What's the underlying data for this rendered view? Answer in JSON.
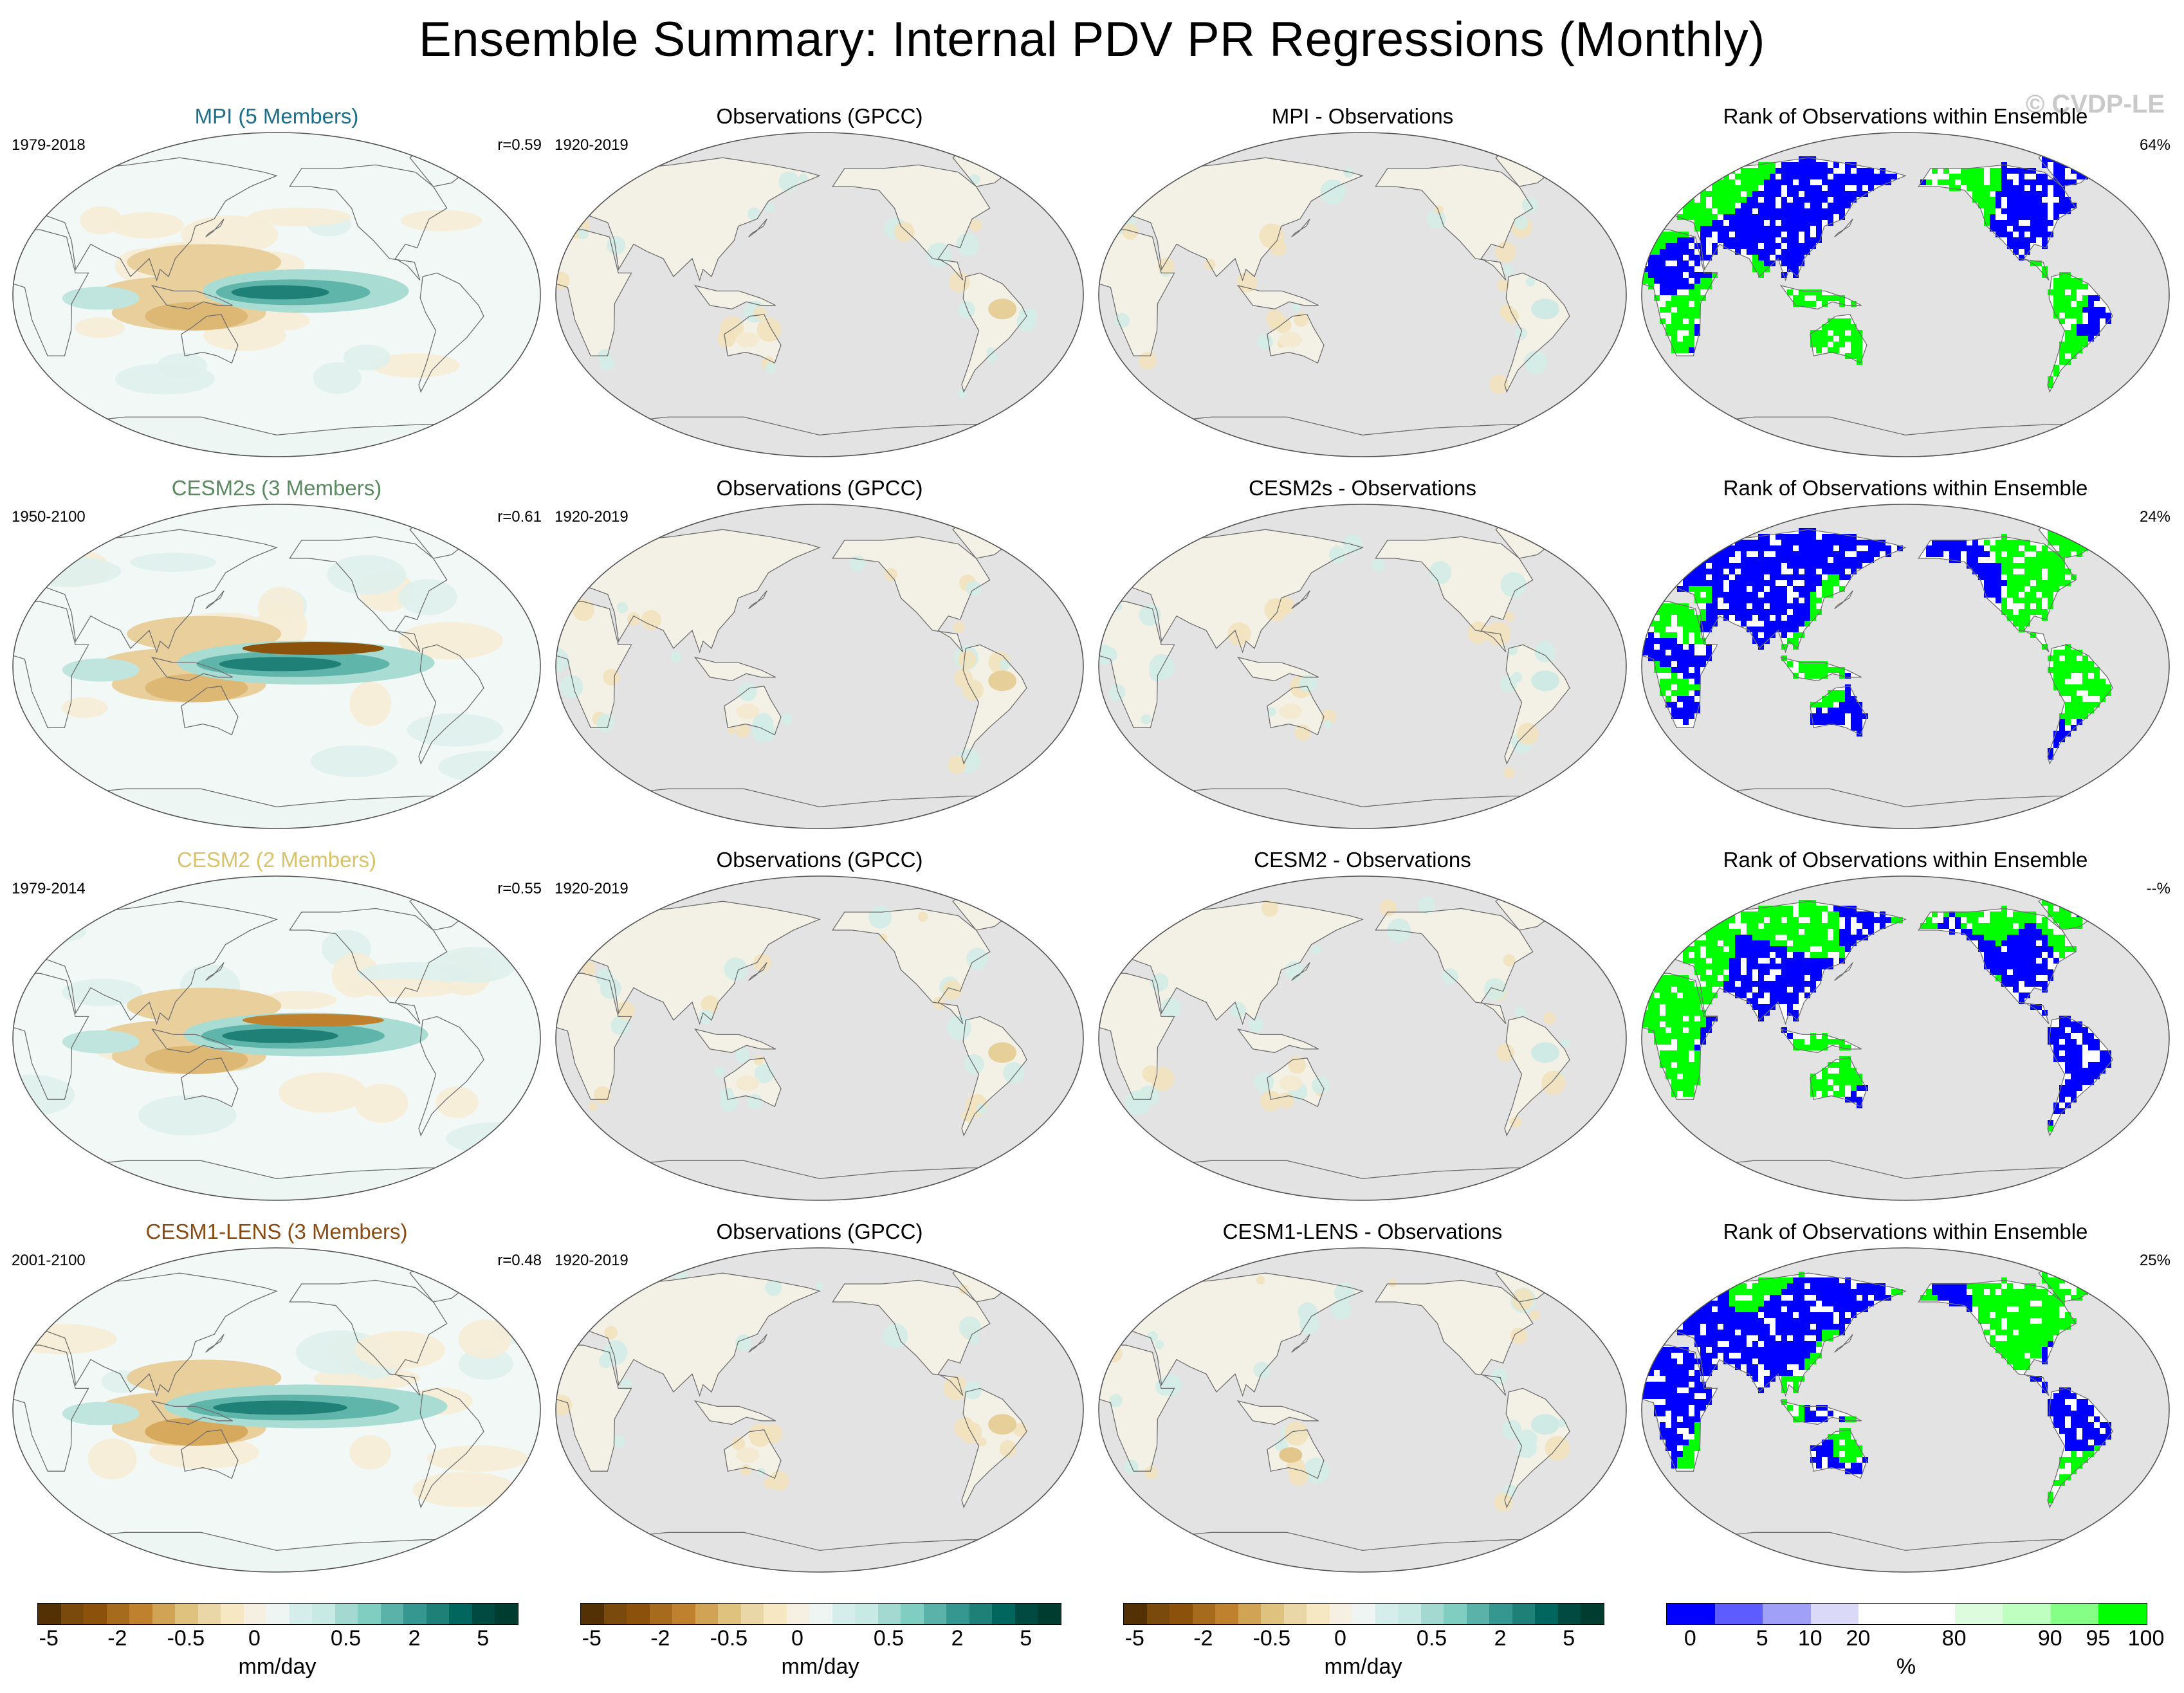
{
  "title": "Ensemble Summary: Internal PDV PR Regressions (Monthly)",
  "watermark": "© CVDP-LE",
  "colors": {
    "ocean_gray": "#e3e3e3",
    "coast": "#6f6f6f",
    "blue_rank": "#0000ff",
    "green_rank": "#00ff00"
  },
  "rows": [
    {
      "model": {
        "title": "MPI (5 Members)",
        "title_color": "#1a6f8a",
        "years": "1979-2018",
        "corr": "r=0.59"
      },
      "obs": {
        "title": "Observations (GPCC)",
        "years": "1920-2019"
      },
      "diff": {
        "title": "MPI - Observations"
      },
      "rank": {
        "title": "Rank of Observations within Ensemble",
        "pct": "64%"
      }
    },
    {
      "model": {
        "title": "CESM2s (3 Members)",
        "title_color": "#5a8a5f",
        "years": "1950-2100",
        "corr": "r=0.61"
      },
      "obs": {
        "title": "Observations (GPCC)",
        "years": "1920-2019"
      },
      "diff": {
        "title": "CESM2s - Observations"
      },
      "rank": {
        "title": "Rank of Observations within Ensemble",
        "pct": "24%"
      }
    },
    {
      "model": {
        "title": "CESM2 (2 Members)",
        "title_color": "#d8c26a",
        "years": "1979-2014",
        "corr": "r=0.55"
      },
      "obs": {
        "title": "Observations (GPCC)",
        "years": "1920-2019"
      },
      "diff": {
        "title": "CESM2 - Observations"
      },
      "rank": {
        "title": "Rank of Observations within Ensemble",
        "pct": "--%"
      }
    },
    {
      "model": {
        "title": "CESM1-LENS (3 Members)",
        "title_color": "#8a4b12",
        "years": "2001-2100",
        "corr": "r=0.48"
      },
      "obs": {
        "title": "Observations (GPCC)",
        "years": "1920-2019"
      },
      "diff": {
        "title": "CESM1-LENS - Observations"
      },
      "rank": {
        "title": "Rank of Observations within Ensemble",
        "pct": "25%"
      }
    }
  ],
  "colorbars": {
    "pr": {
      "colors": [
        "#543005",
        "#7a4a0c",
        "#8c510a",
        "#a66b1d",
        "#bf812d",
        "#d0a355",
        "#dfc27d",
        "#ead7a8",
        "#f6e8c3",
        "#f5f0e2",
        "#eef5f3",
        "#d6eeeb",
        "#c7eae5",
        "#a3d9d1",
        "#80cdc1",
        "#5ab2a8",
        "#35978f",
        "#1f8077",
        "#01665e",
        "#014a41",
        "#003c30"
      ],
      "ticks": [
        "-5",
        "-2",
        "-0.5",
        "0",
        "0.5",
        "2",
        "5"
      ],
      "unit": "mm/day"
    },
    "rank": {
      "colors": [
        "#0000ff",
        "#5c5cff",
        "#a0a0f8",
        "#dadaf8",
        "#ffffff",
        "#ffffff",
        "#ddfcdd",
        "#bfffbf",
        "#86ff86",
        "#00ff00"
      ],
      "ticks": [
        "0",
        "5",
        "10",
        "20",
        "80",
        "90",
        "95",
        "100"
      ],
      "unit": "%"
    }
  }
}
